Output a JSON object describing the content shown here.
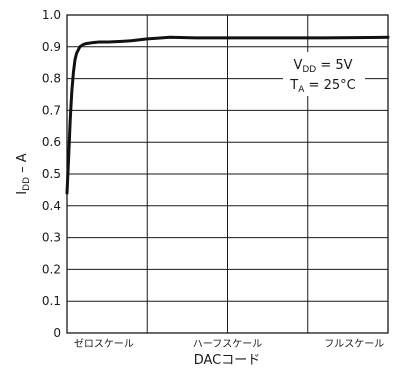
{
  "chart_data": {
    "type": "line",
    "title": "",
    "xlabel": "DACコード",
    "ylabel": {
      "main": "I",
      "sub": "DD",
      "tail": " – A"
    },
    "ylim": [
      0,
      1.0
    ],
    "yticks": [
      "0",
      "0.1",
      "0.2",
      "0.3",
      "0.4",
      "0.5",
      "0.6",
      "0.7",
      "0.8",
      "0.9",
      "1.0"
    ],
    "xlim": [
      0,
      1
    ],
    "xtick_labels": [
      {
        "label": "ゼロスケール",
        "x": 0.115
      },
      {
        "label": "ハーフスケール",
        "x": 0.5
      },
      {
        "label": "フルスケール",
        "x": 0.895
      }
    ],
    "xgrid": [
      0.25,
      0.5,
      0.75
    ],
    "grid": true,
    "annotation": [
      {
        "main": "V",
        "sub": "DD",
        "tail": " = 5V"
      },
      {
        "main": "T",
        "sub": "A",
        "tail": " = 25°C"
      }
    ],
    "series": [
      {
        "color": "#111111",
        "x": [
          0.0,
          0.005,
          0.01,
          0.015,
          0.02,
          0.025,
          0.03,
          0.04,
          0.05,
          0.06,
          0.08,
          0.1,
          0.13,
          0.17,
          0.2,
          0.25,
          0.28,
          0.32,
          0.4,
          0.5,
          0.6,
          0.7,
          0.8,
          0.9,
          1.0
        ],
        "y": [
          0.44,
          0.55,
          0.67,
          0.76,
          0.82,
          0.86,
          0.88,
          0.9,
          0.907,
          0.91,
          0.913,
          0.915,
          0.915,
          0.917,
          0.919,
          0.925,
          0.927,
          0.93,
          0.928,
          0.928,
          0.928,
          0.928,
          0.928,
          0.929,
          0.93
        ]
      }
    ]
  }
}
